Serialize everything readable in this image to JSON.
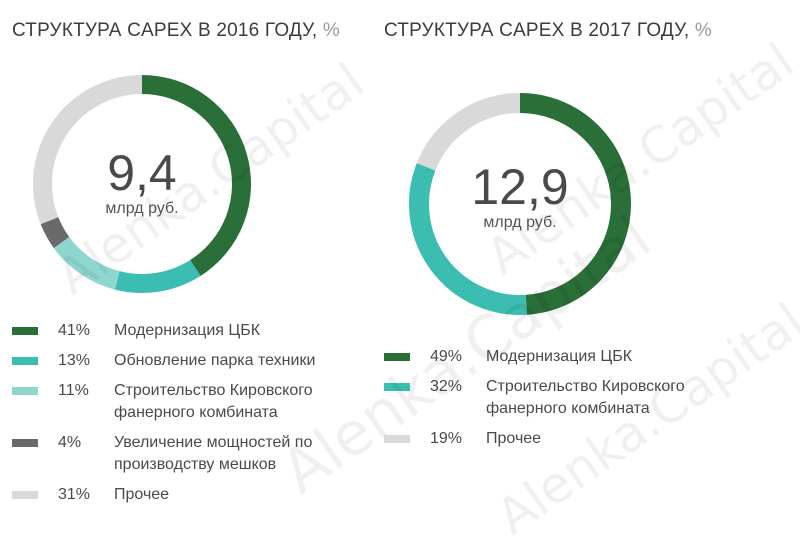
{
  "chart_data": [
    {
      "type": "pie",
      "title": "СТРУКТУРА CAPEX В 2016 ГОДУ,",
      "title_unit": "%",
      "center_value": "9,4",
      "center_unit": "млрд руб.",
      "start_angle_deg": 0,
      "series": [
        {
          "name": "Модернизация ЦБК",
          "value": 41,
          "label": "41%",
          "color": "#2a6e38"
        },
        {
          "name": "Обновление парка техники",
          "value": 13,
          "label": "13%",
          "color": "#3bbdb1"
        },
        {
          "name": "Строительство Кировского фанерного комбината",
          "value": 11,
          "label": "11%",
          "color": "#8fd6cf"
        },
        {
          "name": "Увеличение мощностей по производству мешков",
          "value": 4,
          "label": "4%",
          "color": "#6a6a6a"
        },
        {
          "name": "Прочее",
          "value": 31,
          "label": "31%",
          "color": "#d9d9d9"
        }
      ]
    },
    {
      "type": "pie",
      "title": "СТРУКТУРА CAPEX В 2017 ГОДУ,",
      "title_unit": "%",
      "center_value": "12,9",
      "center_unit": "млрд руб.",
      "start_angle_deg": 0,
      "series": [
        {
          "name": "Модернизация ЦБК",
          "value": 49,
          "label": "49%",
          "color": "#2a6e38"
        },
        {
          "name": "Строительство Кировского фанерного комбината",
          "value": 32,
          "label": "32%",
          "color": "#3bbdb1"
        },
        {
          "name": "Прочее",
          "value": 19,
          "label": "19%",
          "color": "#d9d9d9"
        }
      ]
    }
  ],
  "watermark": "Alenka.Capital"
}
